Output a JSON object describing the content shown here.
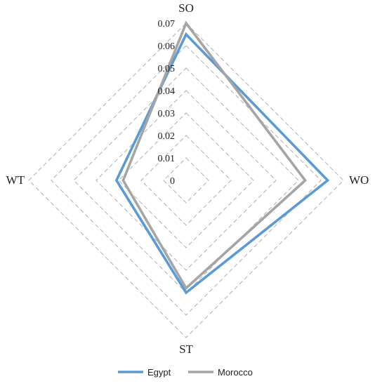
{
  "chart_data": {
    "type": "radar",
    "axes": [
      "SO",
      "WO",
      "ST",
      "WT"
    ],
    "ticks": [
      "0",
      "0.01",
      "0.02",
      "0.03",
      "0.04",
      "0.05",
      "0.06",
      "0.07"
    ],
    "range": [
      0,
      0.07
    ],
    "grid": true,
    "legend_position": "bottom",
    "series": [
      {
        "name": "Egypt",
        "color": "#5b9bd5",
        "values": [
          0.065,
          0.063,
          0.05,
          0.031
        ]
      },
      {
        "name": "Morocco",
        "color": "#a5a5a5",
        "values": [
          0.07,
          0.053,
          0.048,
          0.028
        ]
      }
    ]
  }
}
